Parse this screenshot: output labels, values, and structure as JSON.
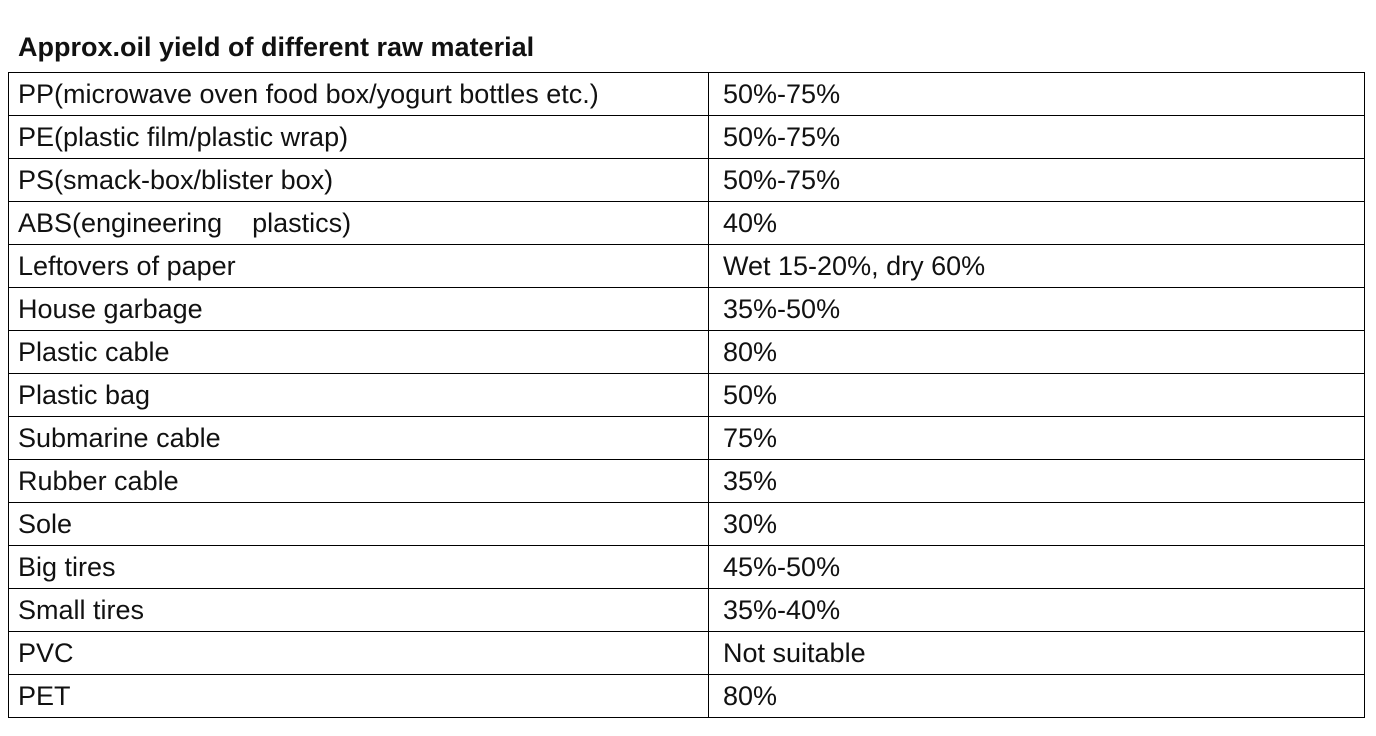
{
  "title": "Approx.oil yield of different raw material",
  "rows": [
    {
      "material": "PP(microwave oven food box/yogurt bottles etc.)",
      "yield": "50%-75%"
    },
    {
      "material": "PE(plastic film/plastic wrap)",
      "yield": "50%-75%"
    },
    {
      "material": "PS(smack-box/blister box)",
      "yield": "50%-75%"
    },
    {
      "material": "ABS(engineering    plastics)",
      "yield": "40%"
    },
    {
      "material": "Leftovers of paper",
      "yield": "Wet 15-20%, dry 60%"
    },
    {
      "material": "House garbage",
      "yield": "35%-50%"
    },
    {
      "material": "Plastic cable",
      "yield": "80%"
    },
    {
      "material": "Plastic bag",
      "yield": "50%"
    },
    {
      "material": "Submarine cable",
      "yield": "75%"
    },
    {
      "material": "Rubber cable",
      "yield": "35%"
    },
    {
      "material": "Sole",
      "yield": "30%"
    },
    {
      "material": "Big tires",
      "yield": "45%-50%"
    },
    {
      "material": "Small tires",
      "yield": "35%-40%"
    },
    {
      "material": "PVC",
      "yield": "Not suitable"
    },
    {
      "material": "PET",
      "yield": "80%"
    }
  ]
}
